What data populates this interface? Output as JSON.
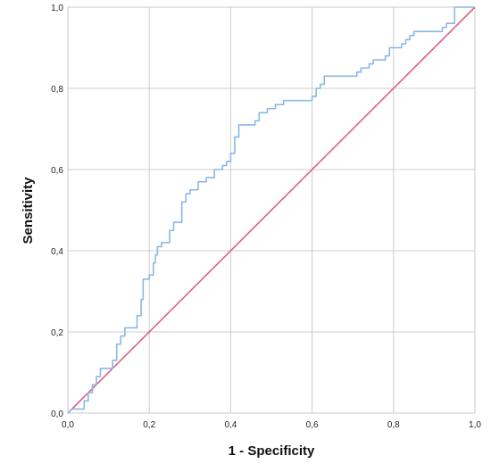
{
  "chart_data": {
    "type": "line",
    "title": "",
    "xlabel": "1 - Specificity",
    "ylabel": "Sensitivity",
    "xlim": [
      0,
      1
    ],
    "ylim": [
      0,
      1
    ],
    "x_ticks": [
      "0,0",
      "0,2",
      "0,4",
      "0,6",
      "0,8",
      "1,0"
    ],
    "y_ticks": [
      "0,0",
      "0,2",
      "0,4",
      "0,6",
      "0,8",
      "1,0"
    ],
    "grid": true,
    "legend": "none",
    "colors": {
      "roc": "#8ab8e6",
      "reference": "#e0607e",
      "grid": "#cccccc",
      "frame": "#c8c8c8"
    },
    "series": [
      {
        "values": [
          [
            0.0,
            0.0
          ],
          [
            0.01,
            0.01
          ],
          [
            0.04,
            0.01
          ],
          [
            0.04,
            0.03
          ],
          [
            0.05,
            0.03
          ],
          [
            0.05,
            0.05
          ],
          [
            0.06,
            0.05
          ],
          [
            0.06,
            0.07
          ],
          [
            0.07,
            0.07
          ],
          [
            0.07,
            0.09
          ],
          [
            0.08,
            0.09
          ],
          [
            0.08,
            0.11
          ],
          [
            0.11,
            0.11
          ],
          [
            0.11,
            0.13
          ],
          [
            0.12,
            0.13
          ],
          [
            0.12,
            0.17
          ],
          [
            0.13,
            0.17
          ],
          [
            0.13,
            0.19
          ],
          [
            0.14,
            0.19
          ],
          [
            0.14,
            0.21
          ],
          [
            0.17,
            0.21
          ],
          [
            0.17,
            0.24
          ],
          [
            0.18,
            0.24
          ],
          [
            0.18,
            0.28
          ],
          [
            0.185,
            0.28
          ],
          [
            0.185,
            0.33
          ],
          [
            0.2,
            0.33
          ],
          [
            0.2,
            0.34
          ],
          [
            0.21,
            0.34
          ],
          [
            0.21,
            0.37
          ],
          [
            0.215,
            0.37
          ],
          [
            0.215,
            0.39
          ],
          [
            0.22,
            0.39
          ],
          [
            0.22,
            0.41
          ],
          [
            0.23,
            0.41
          ],
          [
            0.23,
            0.42
          ],
          [
            0.25,
            0.42
          ],
          [
            0.25,
            0.45
          ],
          [
            0.26,
            0.45
          ],
          [
            0.26,
            0.47
          ],
          [
            0.28,
            0.47
          ],
          [
            0.28,
            0.52
          ],
          [
            0.29,
            0.52
          ],
          [
            0.29,
            0.54
          ],
          [
            0.3,
            0.54
          ],
          [
            0.3,
            0.55
          ],
          [
            0.32,
            0.55
          ],
          [
            0.32,
            0.57
          ],
          [
            0.34,
            0.57
          ],
          [
            0.34,
            0.58
          ],
          [
            0.36,
            0.58
          ],
          [
            0.36,
            0.6
          ],
          [
            0.38,
            0.6
          ],
          [
            0.38,
            0.61
          ],
          [
            0.39,
            0.61
          ],
          [
            0.39,
            0.62
          ],
          [
            0.4,
            0.62
          ],
          [
            0.4,
            0.64
          ],
          [
            0.41,
            0.64
          ],
          [
            0.41,
            0.68
          ],
          [
            0.42,
            0.68
          ],
          [
            0.42,
            0.71
          ],
          [
            0.46,
            0.71
          ],
          [
            0.46,
            0.72
          ],
          [
            0.47,
            0.72
          ],
          [
            0.47,
            0.74
          ],
          [
            0.49,
            0.74
          ],
          [
            0.49,
            0.75
          ],
          [
            0.51,
            0.75
          ],
          [
            0.51,
            0.76
          ],
          [
            0.53,
            0.76
          ],
          [
            0.53,
            0.77
          ],
          [
            0.6,
            0.77
          ],
          [
            0.6,
            0.78
          ],
          [
            0.61,
            0.78
          ],
          [
            0.61,
            0.8
          ],
          [
            0.62,
            0.8
          ],
          [
            0.62,
            0.81
          ],
          [
            0.63,
            0.81
          ],
          [
            0.63,
            0.83
          ],
          [
            0.71,
            0.83
          ],
          [
            0.71,
            0.84
          ],
          [
            0.72,
            0.84
          ],
          [
            0.72,
            0.85
          ],
          [
            0.74,
            0.85
          ],
          [
            0.74,
            0.86
          ],
          [
            0.75,
            0.86
          ],
          [
            0.75,
            0.87
          ],
          [
            0.78,
            0.87
          ],
          [
            0.78,
            0.88
          ],
          [
            0.79,
            0.88
          ],
          [
            0.79,
            0.9
          ],
          [
            0.82,
            0.9
          ],
          [
            0.82,
            0.91
          ],
          [
            0.83,
            0.91
          ],
          [
            0.83,
            0.92
          ],
          [
            0.84,
            0.92
          ],
          [
            0.84,
            0.93
          ],
          [
            0.85,
            0.93
          ],
          [
            0.85,
            0.94
          ],
          [
            0.92,
            0.94
          ],
          [
            0.92,
            0.95
          ],
          [
            0.93,
            0.95
          ],
          [
            0.93,
            0.96
          ],
          [
            0.95,
            0.96
          ],
          [
            0.95,
            1.0
          ],
          [
            1.0,
            1.0
          ]
        ]
      },
      {
        "values": [
          [
            0.0,
            0.0
          ],
          [
            1.0,
            1.0
          ]
        ]
      }
    ]
  }
}
